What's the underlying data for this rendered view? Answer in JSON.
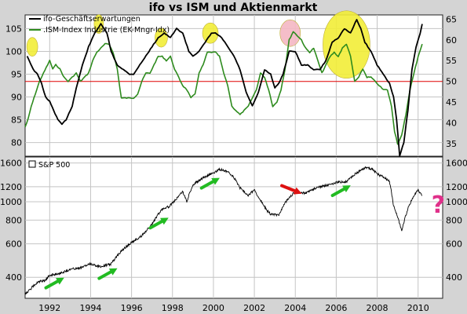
{
  "chart_data": [
    {
      "type": "line",
      "title": "ifo vs ISM und Aktienmarkt",
      "x_ticks": [],
      "y_left": {
        "ticks": [
          80,
          85,
          90,
          95,
          100,
          105
        ],
        "range": [
          77,
          108
        ]
      },
      "y_right": {
        "ticks": [
          35,
          40,
          45,
          50,
          55,
          60,
          65
        ],
        "range": [
          32,
          66
        ]
      },
      "reference_line": {
        "y_right": 50,
        "color": "#e00000"
      },
      "series": [
        {
          "name": "ifo-Geschäftserwartungen",
          "axis": "left",
          "color": "#000000",
          "x": [
            1990.9,
            1991.0,
            1991.2,
            1991.4,
            1991.6,
            1991.8,
            1992.0,
            1992.2,
            1992.4,
            1992.6,
            1992.8,
            1993.0,
            1993.1,
            1993.3,
            1993.6,
            1993.9,
            1994.2,
            1994.5,
            1994.8,
            1995.0,
            1995.3,
            1995.6,
            1995.9,
            1996.1,
            1996.4,
            1996.7,
            1997.0,
            1997.3,
            1997.6,
            1997.9,
            1998.2,
            1998.5,
            1998.8,
            1999.0,
            1999.3,
            1999.6,
            1999.9,
            2000.1,
            2000.4,
            2000.7,
            2001.0,
            2001.3,
            2001.6,
            2001.9,
            2002.2,
            2002.5,
            2002.8,
            2003.0,
            2003.2,
            2003.4,
            2003.7,
            2004.0,
            2004.3,
            2004.6,
            2004.9,
            2005.2,
            2005.5,
            2005.8,
            2006.1,
            2006.4,
            2006.7,
            2007.0,
            2007.2,
            2007.4,
            2007.7,
            2008.0,
            2008.3,
            2008.6,
            2008.8,
            2008.95,
            2009.1,
            2009.3,
            2009.5,
            2009.7,
            2009.9,
            2010.1,
            2010.2
          ],
          "values": [
            99,
            98,
            96,
            95,
            93,
            90,
            89,
            87,
            85,
            84,
            85,
            87,
            88,
            92,
            97,
            101,
            104,
            106,
            104,
            100,
            97,
            96,
            95,
            95,
            97,
            99,
            101,
            103,
            104,
            103,
            105,
            104,
            100,
            99,
            100,
            102,
            104,
            104,
            103,
            101,
            99,
            96,
            91,
            88,
            91,
            96,
            95,
            92,
            93,
            95,
            100,
            100,
            97,
            97,
            96,
            96,
            98,
            102,
            103,
            105,
            104,
            107,
            105,
            102,
            100,
            97,
            95,
            93,
            90,
            85,
            77,
            80,
            87,
            96,
            101,
            104,
            106
          ]
        },
        {
          "name": ".ISM-Index Industrie (EK-Mngr-Idx)",
          "axis": "right",
          "color": "#2e8b1e",
          "x": [
            1990.8,
            1990.95,
            1991.1,
            1991.3,
            1991.5,
            1991.7,
            1991.9,
            1992.0,
            1992.15,
            1992.3,
            1992.5,
            1992.7,
            1992.9,
            1993.1,
            1993.3,
            1993.5,
            1993.7,
            1993.9,
            1994.1,
            1994.3,
            1994.5,
            1994.7,
            1994.9,
            1995.1,
            1995.3,
            1995.5,
            1995.7,
            1995.9,
            1996.1,
            1996.3,
            1996.5,
            1996.7,
            1996.9,
            1997.1,
            1997.3,
            1997.5,
            1997.7,
            1997.9,
            1998.1,
            1998.3,
            1998.5,
            1998.7,
            1998.9,
            1999.1,
            1999.3,
            1999.5,
            1999.7,
            1999.9,
            2000.1,
            2000.3,
            2000.5,
            2000.7,
            2000.9,
            2001.1,
            2001.3,
            2001.5,
            2001.7,
            2001.9,
            2002.1,
            2002.3,
            2002.5,
            2002.7,
            2002.9,
            2003.1,
            2003.3,
            2003.5,
            2003.7,
            2003.9,
            2004.1,
            2004.3,
            2004.5,
            2004.7,
            2004.9,
            2005.1,
            2005.3,
            2005.5,
            2005.7,
            2005.9,
            2006.1,
            2006.3,
            2006.5,
            2006.7,
            2006.9,
            2007.1,
            2007.3,
            2007.5,
            2007.7,
            2007.9,
            2008.1,
            2008.3,
            2008.5,
            2008.7,
            2008.85,
            2009.0,
            2009.2,
            2009.4,
            2009.6,
            2009.8,
            2010.0,
            2010.2
          ],
          "values": [
            39,
            41,
            44,
            47,
            50,
            52,
            54,
            55,
            53,
            54,
            53,
            51,
            50,
            51,
            52,
            50,
            51,
            52,
            55,
            57,
            58,
            59,
            59,
            57,
            53,
            46,
            46,
            46,
            46,
            47,
            50,
            52,
            52,
            54,
            56,
            56,
            55,
            56,
            53,
            51,
            49,
            48,
            46,
            47,
            52,
            54,
            57,
            57,
            57,
            56,
            52,
            49,
            44,
            43,
            42,
            43,
            44,
            46,
            48,
            52,
            51,
            48,
            44,
            45,
            48,
            53,
            60,
            62,
            61,
            60,
            58,
            57,
            58,
            55,
            52,
            54,
            56,
            57,
            56,
            58,
            59,
            56,
            50,
            51,
            53,
            51,
            51,
            50,
            49,
            48,
            48,
            44,
            38,
            35,
            37,
            42,
            48,
            52,
            56,
            59
          ]
        }
      ],
      "annotations": [
        {
          "type": "circle",
          "color": "#f2ee38",
          "at": [
            1991.15,
            101
          ]
        },
        {
          "type": "circle",
          "color": "#f2ee38",
          "at": [
            1994.4,
            106
          ]
        },
        {
          "type": "circle",
          "color": "#f2ee38",
          "at": [
            1997.45,
            103
          ]
        },
        {
          "type": "circle",
          "color": "#f2ee38",
          "at": [
            1999.85,
            104
          ]
        },
        {
          "type": "circle",
          "color": "#f4b8c4",
          "at": [
            2003.75,
            104
          ]
        },
        {
          "type": "circle",
          "color": "#f2ee38",
          "at": [
            2006.5,
            101.5
          ]
        }
      ]
    },
    {
      "type": "line",
      "xlabel": "",
      "x_ticks": [
        1992,
        1994,
        1996,
        1998,
        2000,
        2002,
        2004,
        2006,
        2008,
        2010
      ],
      "x_range": [
        1990.8,
        2011.2
      ],
      "y_scale": "log",
      "y_ticks": [
        400,
        600,
        800,
        1000,
        1200,
        1600
      ],
      "y_range": [
        310,
        1720
      ],
      "series": [
        {
          "name": "S&P 500",
          "color": "#000000",
          "x": [
            1990.8,
            1991.0,
            1991.2,
            1991.5,
            1991.8,
            1992.0,
            1992.5,
            1993.0,
            1993.5,
            1994.0,
            1994.5,
            1995.0,
            1995.5,
            1996.0,
            1996.5,
            1997.0,
            1997.5,
            1997.8,
            1998.0,
            1998.5,
            1998.7,
            1999.0,
            1999.5,
            2000.0,
            2000.3,
            2000.7,
            2001.0,
            2001.3,
            2001.7,
            2002.0,
            2002.3,
            2002.6,
            2002.8,
            2003.2,
            2003.5,
            2004.0,
            2004.5,
            2005.0,
            2005.5,
            2006.0,
            2006.5,
            2007.0,
            2007.5,
            2007.8,
            2008.0,
            2008.3,
            2008.6,
            2008.8,
            2009.0,
            2009.2,
            2009.5,
            2009.8,
            2010.0,
            2010.2
          ],
          "values": [
            330,
            340,
            360,
            380,
            385,
            410,
            420,
            440,
            450,
            470,
            455,
            470,
            550,
            610,
            660,
            760,
            920,
            940,
            980,
            1130,
            1000,
            1230,
            1340,
            1420,
            1480,
            1440,
            1340,
            1180,
            1080,
            1150,
            1020,
            900,
            860,
            850,
            990,
            1130,
            1110,
            1180,
            1220,
            1260,
            1280,
            1420,
            1520,
            1480,
            1400,
            1350,
            1280,
            950,
            830,
            700,
            920,
            1080,
            1150,
            1080
          ]
        }
      ],
      "annotations": [
        {
          "type": "arrow",
          "color": "#22bb22",
          "at": 1992.2
        },
        {
          "type": "arrow",
          "color": "#22bb22",
          "at": 1994.8
        },
        {
          "type": "arrow",
          "color": "#22bb22",
          "at": 1997.3
        },
        {
          "type": "arrow",
          "color": "#22bb22",
          "at": 1999.8
        },
        {
          "type": "arrow",
          "color": "#dd1111",
          "at": 2003.8
        },
        {
          "type": "arrow",
          "color": "#22bb22",
          "at": 2006.2
        },
        {
          "type": "text",
          "text": "?",
          "color": "#e0308a",
          "at": 2010.6
        }
      ]
    }
  ]
}
